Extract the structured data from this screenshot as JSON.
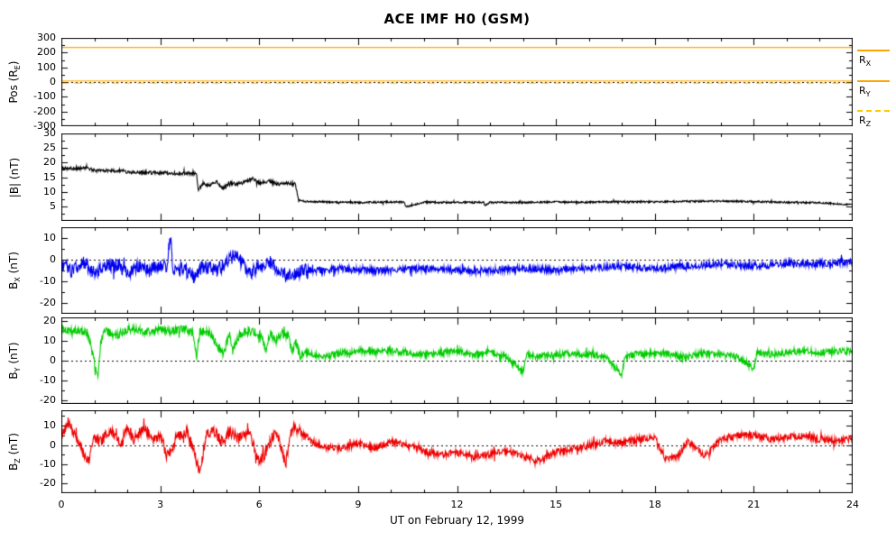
{
  "title": "ACE IMF H0 (GSM)",
  "xlabel": "UT on February 12, 1999",
  "chart_data": {
    "type": "line",
    "title": "ACE IMF H0 (GSM)",
    "xlabel": "UT on February 12, 1999",
    "x_range": [
      0,
      24
    ],
    "x_major_ticks": [
      0,
      3,
      6,
      9,
      12,
      15,
      18,
      21,
      24
    ],
    "x_minor_step": 1,
    "legend": [
      {
        "pre": "R",
        "sub": "X",
        "color": "#FFA500",
        "dash": false
      },
      {
        "pre": "R",
        "sub": "Y",
        "color": "#FFA500",
        "dash": false
      },
      {
        "pre": "R",
        "sub": "Z",
        "color": "#FFC800",
        "dash": true
      }
    ],
    "panels": [
      {
        "ylabel": {
          "pre": "Pos (R",
          "sub": "E",
          "post": ")"
        },
        "ylim": [
          -300,
          300
        ],
        "yticks": [
          300,
          200,
          100,
          0,
          -100,
          -200,
          -300
        ],
        "zero_line": true,
        "series": [
          {
            "name": "R_X",
            "color": "#FFA500",
            "dash": false,
            "seed": 11,
            "x": [
              0,
              24
            ],
            "y": [
              235,
              235
            ],
            "amp": [
              [
                0,
                24,
                0
              ]
            ]
          },
          {
            "name": "R_Y",
            "color": "#FFA500",
            "dash": false,
            "seed": 12,
            "x": [
              0,
              24
            ],
            "y": [
              8,
              8
            ],
            "amp": [
              [
                0,
                24,
                0
              ]
            ]
          },
          {
            "name": "R_Z",
            "color": "#FFC800",
            "dash": true,
            "seed": 13,
            "x": [
              0,
              24
            ],
            "y": [
              -8,
              -8
            ],
            "amp": [
              [
                0,
                24,
                0
              ]
            ]
          }
        ]
      },
      {
        "ylabel": {
          "pre": "|B| (nT)",
          "sub": "",
          "post": ""
        },
        "ylim": [
          0,
          30
        ],
        "yticks": [
          30,
          25,
          20,
          15,
          10,
          5
        ],
        "zero_line": false,
        "series": [
          {
            "name": "|B|",
            "color": "#000000",
            "dash": false,
            "seed": 21,
            "x": [
              0,
              0.8,
              1.0,
              1.8,
              2.0,
              2.5,
              3.0,
              3.5,
              4.0,
              4.1,
              4.15,
              4.3,
              4.5,
              4.7,
              4.9,
              5.1,
              5.3,
              5.6,
              5.8,
              6.0,
              6.3,
              6.6,
              6.9,
              7.1,
              7.2,
              7.5,
              8,
              9,
              10,
              10.4,
              10.45,
              11,
              12,
              12.8,
              12.85,
              13,
              14,
              15,
              16,
              17,
              18,
              19,
              20,
              21,
              22,
              23,
              23.5,
              24
            ],
            "y": [
              18,
              18,
              17.3,
              17.2,
              16.8,
              16.6,
              16.5,
              16.2,
              16.3,
              16,
              10.5,
              13,
              12,
              13.5,
              11,
              13,
              12.5,
              13.5,
              14.5,
              13,
              13.5,
              12.5,
              13,
              12.5,
              7,
              6.6,
              6.5,
              6.3,
              6.5,
              6.4,
              4.8,
              6.4,
              6.3,
              6.4,
              5.2,
              6.4,
              6.3,
              6.5,
              6.4,
              6.6,
              6.5,
              6.7,
              6.8,
              6.6,
              6.4,
              6.2,
              5.9,
              5.5
            ],
            "amp": [
              [
                0,
                7.2,
                0.6
              ],
              [
                7.2,
                24,
                0.3
              ]
            ]
          }
        ]
      },
      {
        "ylabel": {
          "pre": "B",
          "sub": "X",
          "post": " (nT)"
        },
        "ylim": [
          -25,
          15
        ],
        "yticks": [
          10,
          0,
          -10,
          -20
        ],
        "zero_line": true,
        "series": [
          {
            "name": "B_X",
            "color": "#0000EE",
            "dash": false,
            "seed": 31,
            "x": [
              0,
              0.3,
              0.7,
              1.0,
              1.3,
              1.7,
              2.0,
              2.3,
              2.7,
              3.0,
              3.2,
              3.3,
              3.4,
              3.7,
              4.0,
              4.3,
              4.7,
              5.0,
              5.3,
              5.5,
              5.7,
              6.0,
              6.3,
              6.7,
              7.0,
              7.3,
              7.6,
              8,
              8.5,
              9,
              10,
              11,
              12,
              13,
              14,
              15,
              16,
              17,
              18,
              19,
              20,
              21,
              22,
              23,
              24
            ],
            "y": [
              -2,
              -5,
              -1,
              -6,
              -3,
              -2,
              -6,
              -3,
              -5,
              -2,
              -4,
              12,
              -6,
              -4,
              -8,
              -3,
              -5,
              -2,
              3,
              -2,
              -7,
              -3,
              -1,
              -6,
              -8,
              -5,
              -5,
              -5,
              -4,
              -5,
              -5,
              -4,
              -5,
              -5,
              -4,
              -5,
              -4,
              -3,
              -4,
              -3,
              -2,
              -3,
              -2,
              -2,
              -1
            ],
            "amp": [
              [
                0,
                7.5,
                3.2
              ],
              [
                7.5,
                24,
                1.6
              ]
            ]
          }
        ]
      },
      {
        "ylabel": {
          "pre": "B",
          "sub": "Y",
          "post": " (nT)"
        },
        "ylim": [
          -22,
          22
        ],
        "yticks": [
          20,
          10,
          0,
          -10,
          -20
        ],
        "zero_line": true,
        "series": [
          {
            "name": "B_Y",
            "color": "#00CC00",
            "dash": false,
            "seed": 41,
            "x": [
              0,
              0.4,
              0.8,
              1.1,
              1.2,
              1.3,
              1.7,
              2.0,
              2.4,
              2.8,
              3.0,
              3.4,
              3.8,
              4.0,
              4.1,
              4.2,
              4.5,
              4.9,
              5.1,
              5.2,
              5.4,
              5.7,
              6.0,
              6.2,
              6.35,
              6.5,
              6.7,
              6.9,
              7.0,
              7.1,
              7.25,
              7.4,
              7.6,
              8,
              8.5,
              9,
              9.5,
              10,
              10.5,
              11,
              11.5,
              12,
              12.5,
              13,
              13.5,
              14,
              14.1,
              14.3,
              15,
              15.5,
              16,
              16.5,
              17,
              17.1,
              17.3,
              18,
              18.5,
              19,
              19.5,
              20,
              20.5,
              21,
              21.1,
              21.4,
              22,
              22.5,
              23,
              23.5,
              24
            ],
            "y": [
              16,
              15,
              14,
              -8,
              10,
              15,
              13,
              16,
              15,
              14,
              16,
              15,
              16,
              14,
              2,
              15,
              14,
              3,
              13,
              5,
              13,
              15,
              14,
              6,
              14,
              9,
              14,
              12,
              4,
              10,
              2,
              4,
              3,
              2,
              4,
              5,
              4,
              5,
              4,
              3,
              4,
              5,
              3,
              4,
              2,
              -6,
              3,
              2,
              3,
              4,
              3,
              2,
              -7,
              2,
              3,
              4,
              3,
              2,
              4,
              3,
              2,
              -4,
              4,
              3,
              4,
              5,
              4,
              5,
              5
            ],
            "amp": [
              [
                0,
                7.25,
                2.2
              ],
              [
                7.25,
                24,
                1.7
              ]
            ]
          }
        ]
      },
      {
        "ylabel": {
          "pre": "B",
          "sub": "Z",
          "post": " (nT)"
        },
        "ylim": [
          -25,
          18
        ],
        "yticks": [
          10,
          0,
          -10,
          -20
        ],
        "zero_line": true,
        "series": [
          {
            "name": "B_Z",
            "color": "#EE0000",
            "dash": false,
            "seed": 51,
            "x": [
              0,
              0.2,
              0.5,
              0.8,
              1.0,
              1.2,
              1.5,
              1.8,
              2.0,
              2.2,
              2.5,
              2.8,
              3.0,
              3.2,
              3.5,
              3.8,
              4.0,
              4.2,
              4.4,
              4.6,
              4.9,
              5.1,
              5.4,
              5.7,
              6.0,
              6.2,
              6.5,
              6.8,
              7.0,
              7.2,
              7.5,
              7.8,
              8,
              8.5,
              9,
              9.5,
              10,
              10.5,
              11,
              11.5,
              12,
              12.5,
              13,
              13.5,
              14,
              14.5,
              15,
              15.5,
              16,
              16.5,
              17,
              17.5,
              18,
              18.3,
              18.7,
              19,
              19.5,
              20,
              20.5,
              21,
              21.5,
              22,
              22.5,
              23,
              23.5,
              24
            ],
            "y": [
              4,
              12,
              3,
              -9,
              4,
              2,
              8,
              1,
              9,
              3,
              9,
              2,
              6,
              -6,
              4,
              7,
              -2,
              -15,
              6,
              8,
              1,
              7,
              3,
              7,
              -9,
              -4,
              8,
              -10,
              9,
              8,
              3,
              0,
              -1,
              -2,
              1,
              -2,
              2,
              0,
              -3,
              -5,
              -4,
              -6,
              -5,
              -3,
              -6,
              -8,
              -4,
              -2,
              0,
              2,
              1,
              3,
              4,
              -7,
              -6,
              2,
              -6,
              3,
              5,
              5,
              3,
              4,
              5,
              3,
              2,
              3
            ],
            "amp": [
              [
                0,
                7.5,
                2.8
              ],
              [
                7.5,
                24,
                1.8
              ]
            ]
          }
        ]
      }
    ]
  }
}
